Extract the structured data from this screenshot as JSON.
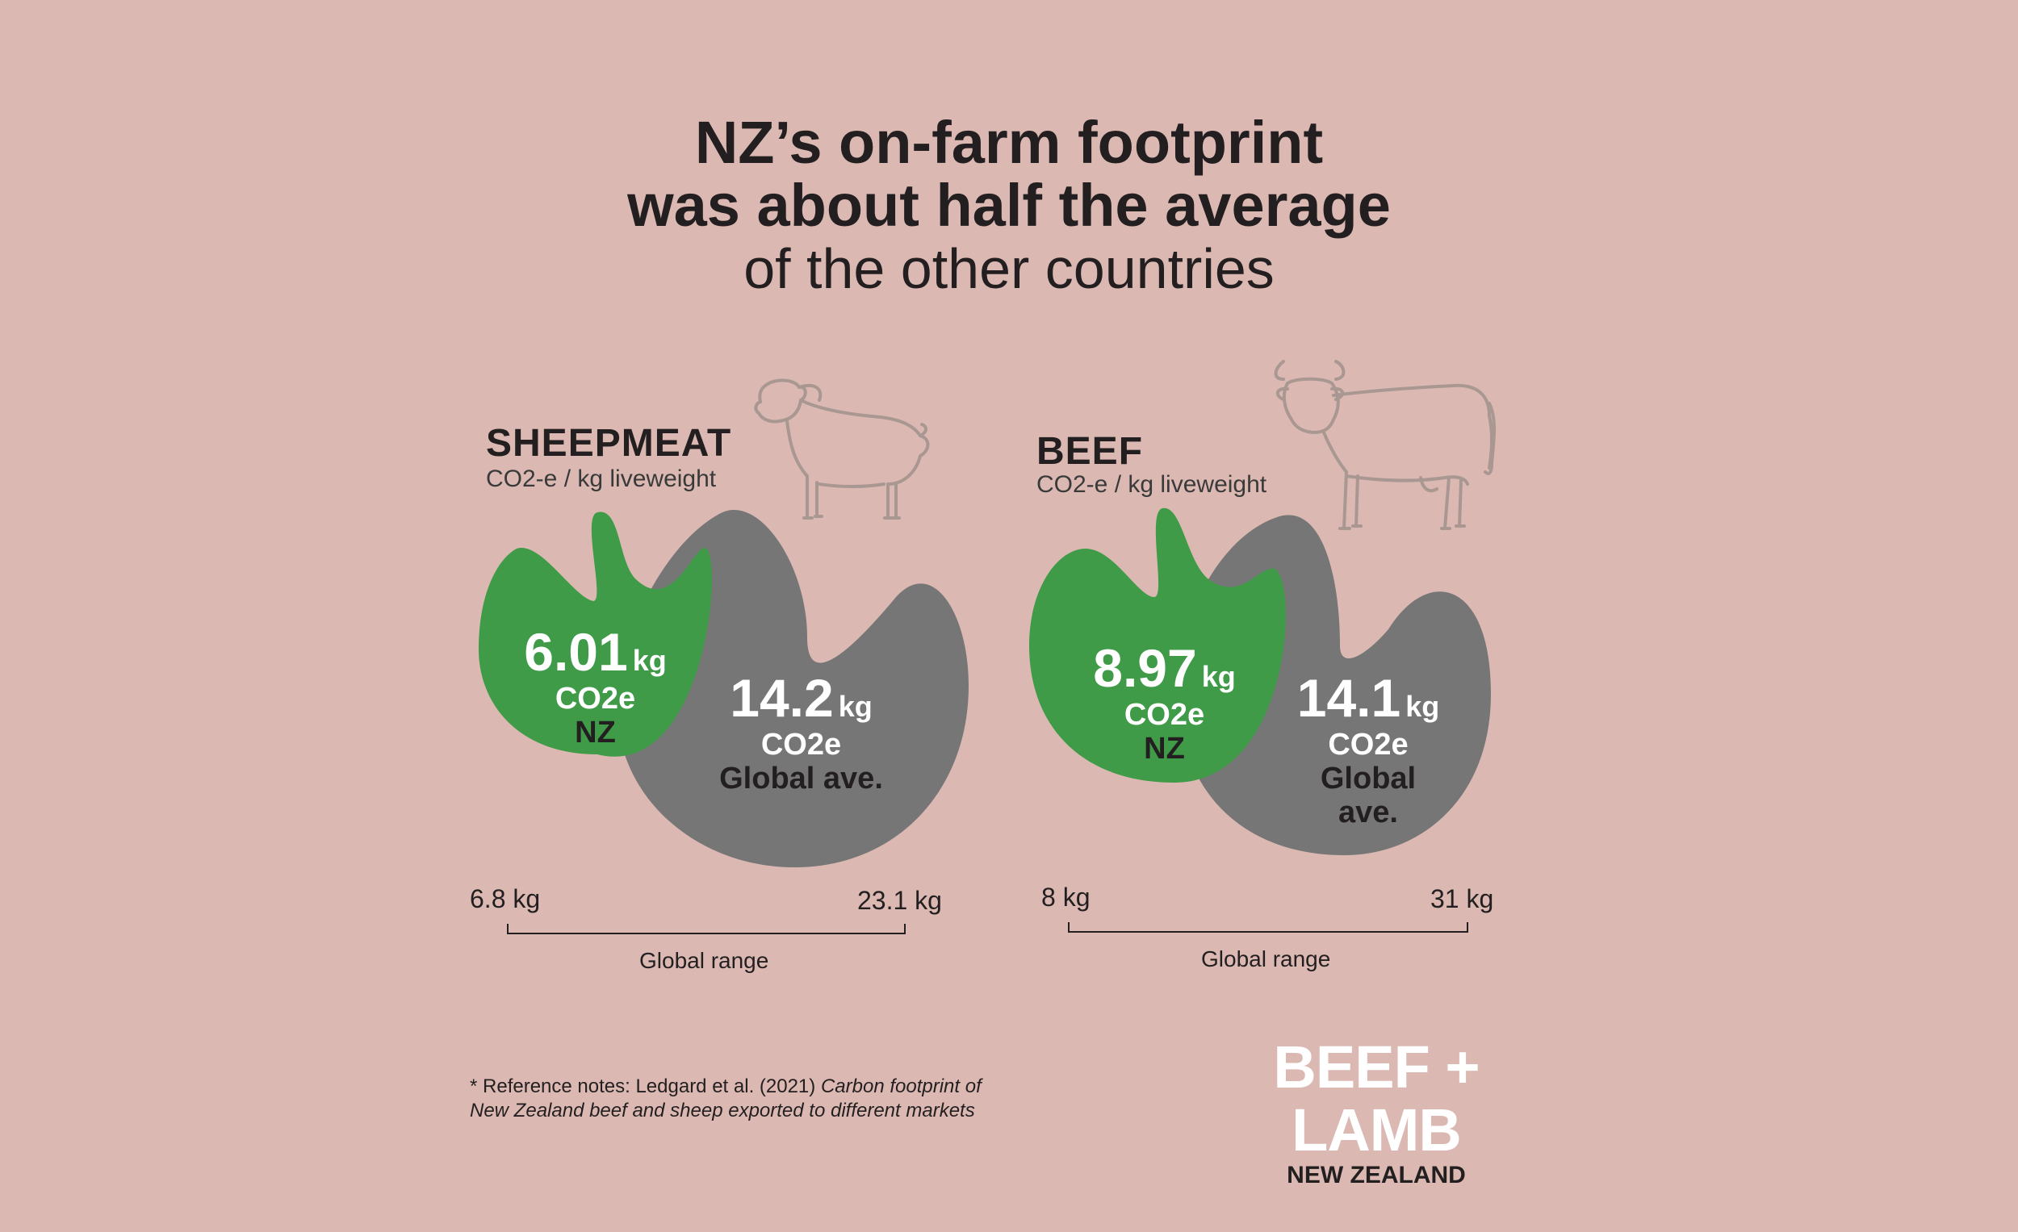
{
  "title": {
    "line1": "NZ’s on-farm footprint",
    "line2": "was about half the average",
    "line3": "of the other countries"
  },
  "panels": [
    {
      "name": "SHEEPMEAT",
      "subtitle": "CO2-e / kg liveweight",
      "nz": {
        "value": "6.01",
        "unit": "kg",
        "co2": "CO2e",
        "label": "NZ"
      },
      "global": {
        "value": "14.2",
        "unit": "kg",
        "co2": "CO2e",
        "label": "Global ave."
      },
      "range_min": "6.8 kg",
      "range_max": "23.1 kg",
      "range_label": "Global range",
      "animal_icon": "sheep-icon"
    },
    {
      "name": "BEEF",
      "subtitle": "CO2-e / kg liveweight",
      "nz": {
        "value": "8.97",
        "unit": "kg",
        "co2": "CO2e",
        "label": "NZ"
      },
      "global": {
        "value": "14.1",
        "unit": "kg",
        "co2": "CO2e",
        "label_line1": "Global",
        "label_line2": "ave."
      },
      "range_min": "8 kg",
      "range_max": "31 kg",
      "range_label": "Global range",
      "animal_icon": "cow-icon"
    }
  ],
  "footnote": {
    "prefix": "* Reference notes: Ledgard et al. (2021) ",
    "italic1": "Carbon footprint of",
    "italic2": "New Zealand beef and sheep exported to different markets"
  },
  "logo": {
    "brand": "BEEF + LAMB",
    "country": "NEW ZEALAND"
  },
  "colors": {
    "background": "#dbb9b2",
    "nz": "#3f9b48",
    "global": "#767676",
    "icon_line": "#a99792"
  },
  "chart_data": [
    {
      "type": "bar",
      "title": "SHEEPMEAT",
      "ylabel": "CO2-e / kg liveweight",
      "categories": [
        "NZ",
        "Global ave."
      ],
      "values": [
        6.01,
        14.2
      ],
      "global_range": [
        6.8,
        23.1
      ]
    },
    {
      "type": "bar",
      "title": "BEEF",
      "ylabel": "CO2-e / kg liveweight",
      "categories": [
        "NZ",
        "Global ave."
      ],
      "values": [
        8.97,
        14.1
      ],
      "global_range": [
        8,
        31
      ]
    }
  ]
}
